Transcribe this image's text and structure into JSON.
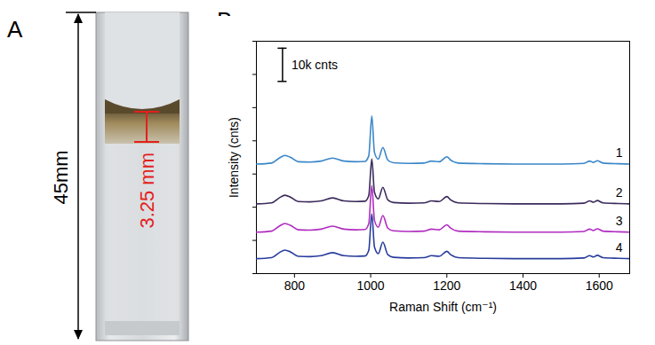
{
  "chart_data": [
    {
      "type": "photo_diagram",
      "panel_label": "A",
      "height_label": "45mm",
      "liquid_label": "3.25 mm"
    },
    {
      "type": "line",
      "panel_label": "B",
      "x_label": "Raman Shift (cm⁻¹)",
      "y_label": "Intensity (cnts)",
      "x": [
        700,
        740,
        760,
        775,
        790,
        810,
        840,
        870,
        900,
        930,
        960,
        985,
        995,
        1003,
        1010,
        1020,
        1032,
        1045,
        1060,
        1100,
        1140,
        1160,
        1180,
        1200,
        1210,
        1230,
        1300,
        1400,
        1500,
        1560,
        1575,
        1585,
        1595,
        1610,
        1650,
        1680
      ],
      "series": [
        {
          "name": "1",
          "color": "#3a86c8",
          "values": [
            33000,
            33300,
            34800,
            35600,
            35000,
            33700,
            33600,
            33900,
            34800,
            33900,
            33700,
            33800,
            35500,
            47500,
            36500,
            34500,
            38000,
            34200,
            33400,
            33200,
            33300,
            33900,
            33700,
            35200,
            34200,
            33300,
            33100,
            33000,
            33000,
            33200,
            33900,
            33500,
            34000,
            33300,
            33100,
            33000
          ]
        },
        {
          "name": "2",
          "color": "#3b2a5c",
          "values": [
            21000,
            21300,
            22800,
            23600,
            23000,
            21700,
            21600,
            21900,
            22800,
            21900,
            21700,
            21800,
            23500,
            34500,
            24500,
            22500,
            26000,
            22200,
            21400,
            21200,
            21300,
            21900,
            21700,
            23200,
            22200,
            21300,
            21100,
            21000,
            21000,
            21200,
            21900,
            21500,
            22000,
            21300,
            21100,
            21000
          ]
        },
        {
          "name": "3",
          "color": "#b02cc0",
          "values": [
            12500,
            12800,
            14300,
            15100,
            14500,
            13200,
            13100,
            13400,
            14300,
            13400,
            13200,
            13300,
            15000,
            26500,
            16000,
            14000,
            17500,
            13700,
            12900,
            12700,
            12800,
            13400,
            13200,
            14700,
            13700,
            12800,
            12600,
            12500,
            12500,
            12700,
            13400,
            13000,
            13500,
            12800,
            12600,
            12500
          ]
        },
        {
          "name": "4",
          "color": "#283c9c",
          "values": [
            4500,
            4800,
            6300,
            7100,
            6500,
            5200,
            5100,
            5400,
            6300,
            5400,
            5200,
            5300,
            7000,
            18000,
            8000,
            6000,
            9500,
            5700,
            4900,
            4700,
            4800,
            5400,
            5200,
            6700,
            5700,
            4800,
            4600,
            4500,
            4500,
            4700,
            5400,
            5000,
            5500,
            4800,
            4600,
            4500
          ]
        }
      ],
      "xlim": [
        700,
        1680
      ],
      "xticks": [
        800,
        1000,
        1200,
        1400,
        1600
      ],
      "ylim": [
        0,
        70000
      ],
      "yticks": [
        0,
        10000,
        20000,
        30000,
        40000,
        50000,
        60000,
        70000
      ],
      "tick_labels": "x",
      "scale_bar": {
        "value": 10000,
        "label": "10k cnts"
      }
    }
  ]
}
